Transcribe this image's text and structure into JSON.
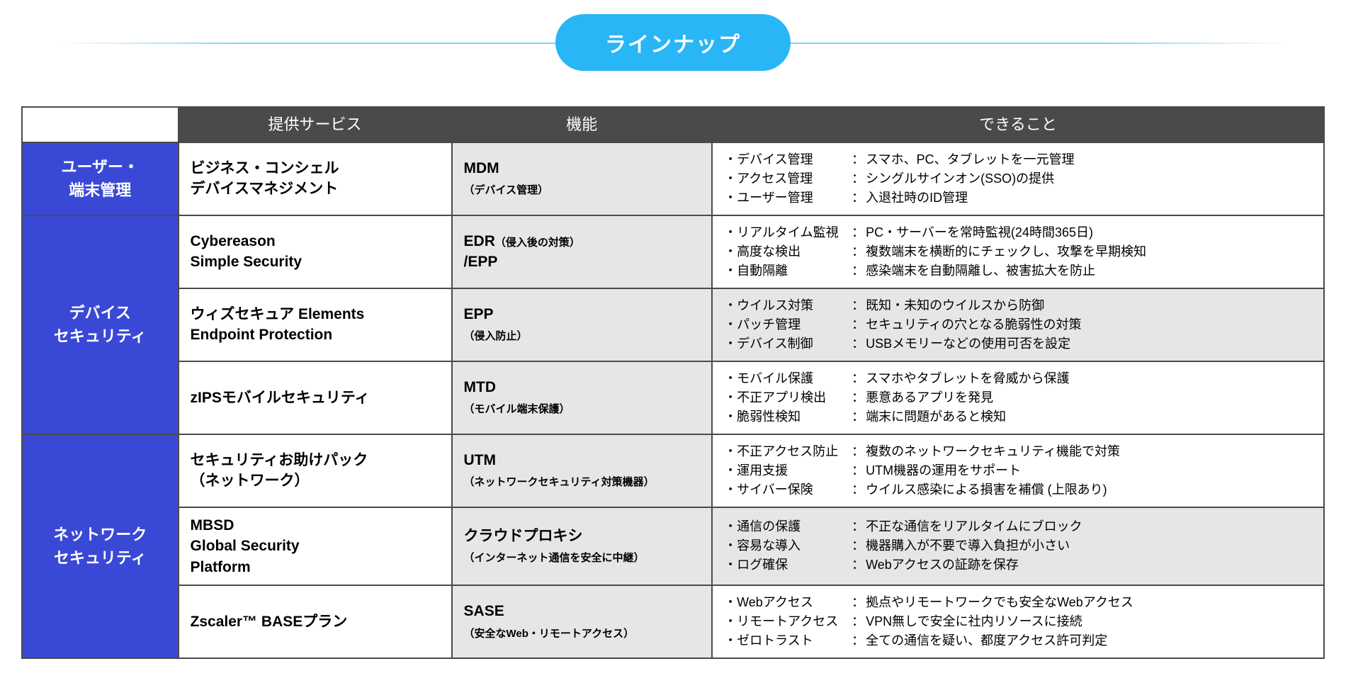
{
  "title": "ラインナップ",
  "colors": {
    "pill_bg": "#29b6f6",
    "pill_text": "#ffffff",
    "header_bg": "#4a4a4a",
    "header_text": "#ffffff",
    "category_bg": "#3949d6",
    "category_text": "#ffffff",
    "func_bg": "#e6e6e6",
    "border": "#4a4a4a"
  },
  "headers": {
    "service": "提供サービス",
    "function": "機能",
    "capability": "できること"
  },
  "categories": [
    {
      "name": "ユーザー・\n端末管理",
      "rows": [
        {
          "service": "ビジネス・コンシェル\nデバイスマネジメント",
          "func_main": "MDM",
          "func_sub": "（デバイス管理）",
          "cap_alt": false,
          "caps": [
            {
              "label": "・デバイス管理",
              "desc": "スマホ、PC、タブレットを一元管理"
            },
            {
              "label": "・アクセス管理",
              "desc": "シングルサインオン(SSO)の提供"
            },
            {
              "label": "・ユーザー管理",
              "desc": "入退社時のID管理"
            }
          ]
        }
      ]
    },
    {
      "name": "デバイス\nセキュリティ",
      "rows": [
        {
          "service": "Cybereason\nSimple Security",
          "func_main": "EDR",
          "func_inline_sub": "（侵入後の対策）",
          "func_main2": "/EPP",
          "cap_alt": false,
          "caps": [
            {
              "label": "・リアルタイム監視",
              "desc": "PC・サーバーを常時監視(24時間365日)"
            },
            {
              "label": "・高度な検出",
              "desc": "複数端末を横断的にチェックし、攻撃を早期検知"
            },
            {
              "label": "・自動隔離",
              "desc": "感染端末を自動隔離し、被害拡大を防止"
            }
          ]
        },
        {
          "service": "ウィズセキュア Elements\nEndpoint Protection",
          "func_main": "EPP",
          "func_sub": "（侵入防止）",
          "cap_alt": true,
          "caps": [
            {
              "label": "・ウイルス対策",
              "desc": "既知・未知のウイルスから防御"
            },
            {
              "label": "・パッチ管理",
              "desc": "セキュリティの穴となる脆弱性の対策"
            },
            {
              "label": "・デバイス制御",
              "desc": "USBメモリーなどの使用可否を設定"
            }
          ]
        },
        {
          "service": "zIPSモバイルセキュリティ",
          "func_main": "MTD",
          "func_sub": "（モバイル端末保護）",
          "cap_alt": false,
          "caps": [
            {
              "label": "・モバイル保護",
              "desc": "スマホやタブレットを脅威から保護"
            },
            {
              "label": "・不正アプリ検出",
              "desc": "悪意あるアプリを発見"
            },
            {
              "label": "・脆弱性検知",
              "desc": "端末に問題があると検知"
            }
          ]
        }
      ]
    },
    {
      "name": "ネットワーク\nセキュリティ",
      "rows": [
        {
          "service": "セキュリティお助けパック\n（ネットワーク）",
          "func_main": "UTM",
          "func_sub": "（ネットワークセキュリティ対策機器）",
          "cap_alt": false,
          "caps": [
            {
              "label": "・不正アクセス防止",
              "desc": "複数のネットワークセキュリティ機能で対策"
            },
            {
              "label": "・運用支援",
              "desc": "UTM機器の運用をサポート"
            },
            {
              "label": "・サイバー保険",
              "desc": "ウイルス感染による損害を補償 (上限あり)"
            }
          ]
        },
        {
          "service": "MBSD\nGlobal Security\nPlatform",
          "func_main": "クラウドプロキシ",
          "func_sub": "（インターネット通信を安全に中継）",
          "cap_alt": true,
          "caps": [
            {
              "label": "・通信の保護",
              "desc": "不正な通信をリアルタイムにブロック"
            },
            {
              "label": "・容易な導入",
              "desc": "機器購入が不要で導入負担が小さい"
            },
            {
              "label": "・ログ確保",
              "desc": "Webアクセスの証跡を保存"
            }
          ]
        },
        {
          "service": "Zscaler™ BASEプラン",
          "func_main": "SASE",
          "func_sub": "（安全なWeb・リモートアクセス）",
          "cap_alt": false,
          "caps": [
            {
              "label": "・Webアクセス",
              "desc": "拠点やリモートワークでも安全なWebアクセス"
            },
            {
              "label": "・リモートアクセス",
              "desc": "VPN無しで安全に社内リソースに接続"
            },
            {
              "label": "・ゼロトラスト",
              "desc": "全ての通信を疑い、都度アクセス許可判定"
            }
          ]
        }
      ]
    }
  ]
}
